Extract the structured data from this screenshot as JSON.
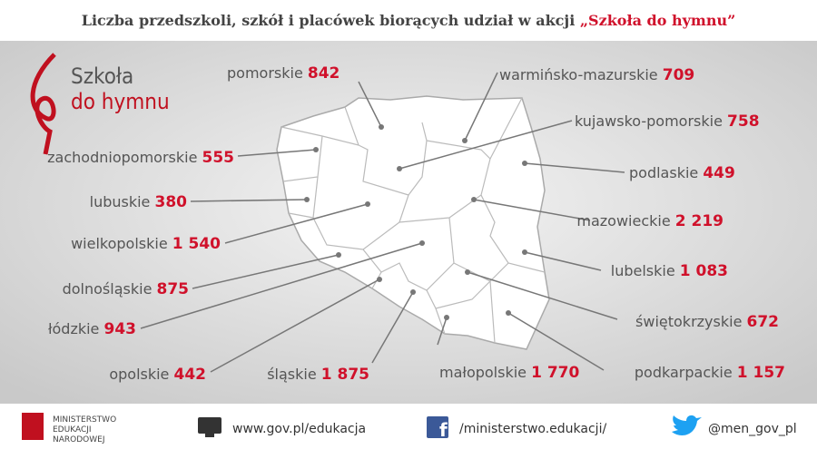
{
  "title": {
    "text": "Liczba przedszkoli, szkół i placówek biorących udział w akcji ",
    "highlight": "„Szkoła do hymnu”"
  },
  "logo": {
    "line1": "Szkoła",
    "line2": "do hymnu"
  },
  "regions": [
    {
      "name": "pomorskie",
      "value": "842"
    },
    {
      "name": "warmińsko-mazurskie",
      "value": "709"
    },
    {
      "name": "kujawsko-pomorskie",
      "value": "758"
    },
    {
      "name": "zachodniopomorskie",
      "value": "555"
    },
    {
      "name": "podlaskie",
      "value": "449"
    },
    {
      "name": "lubuskie",
      "value": "380"
    },
    {
      "name": "mazowieckie",
      "value": "2 219"
    },
    {
      "name": "wielkopolskie",
      "value": "1 540"
    },
    {
      "name": "lubelskie",
      "value": "1 083"
    },
    {
      "name": "dolnośląskie",
      "value": "875"
    },
    {
      "name": "łódzkie",
      "value": "943"
    },
    {
      "name": "świętokrzyskie",
      "value": "672"
    },
    {
      "name": "opolskie",
      "value": "442"
    },
    {
      "name": "śląskie",
      "value": "1 875"
    },
    {
      "name": "małopolskie",
      "value": "1 770"
    },
    {
      "name": "podkarpackie",
      "value": "1 157"
    }
  ],
  "footer": {
    "ministry": [
      "MINISTERSTWO",
      "EDUKACJI",
      "NARODOWEJ"
    ],
    "website": "www.gov.pl/edukacja",
    "facebook": "/ministerstwo.edukacji/",
    "twitter": "@men_gov_pl"
  }
}
